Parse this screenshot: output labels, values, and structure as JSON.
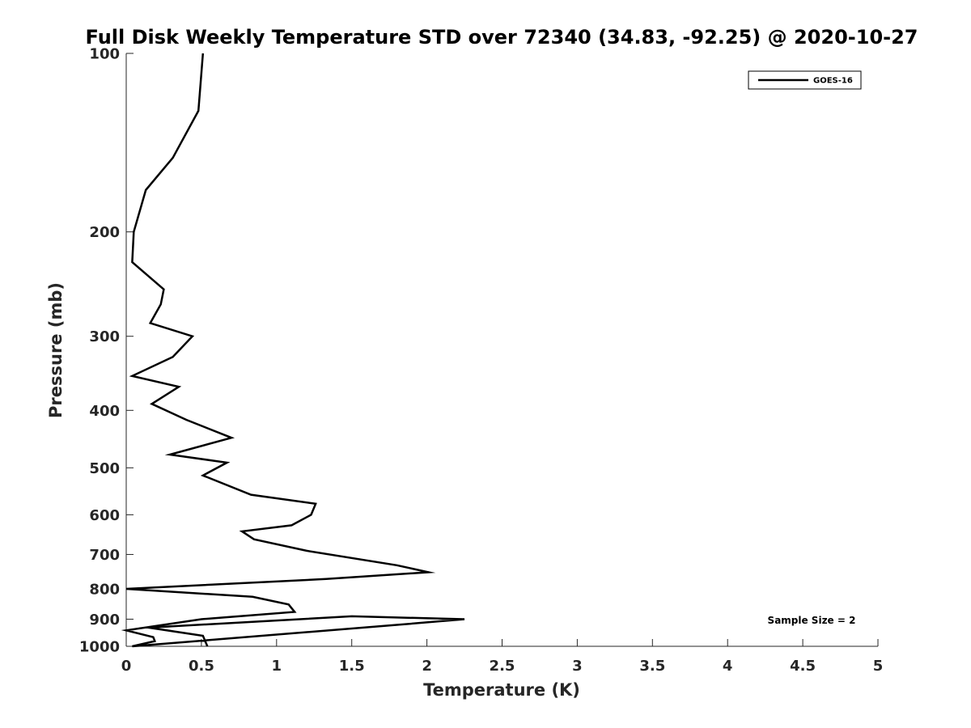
{
  "chart_data": {
    "type": "line",
    "title": "Full Disk Weekly Temperature STD over 72340 (34.83, -92.25) @ 2020-10-27",
    "xlabel": "Temperature (K)",
    "ylabel": "Pressure (mb)",
    "xlim": [
      0,
      5
    ],
    "ylim": [
      100,
      1000
    ],
    "y_scale": "log",
    "y_reversed": true,
    "x_ticks": [
      "0",
      "0.5",
      "1",
      "1.5",
      "2",
      "2.5",
      "3",
      "3.5",
      "4",
      "4.5",
      "5"
    ],
    "y_ticks": [
      "100",
      "200",
      "300",
      "400",
      "500",
      "600",
      "700",
      "800",
      "900",
      "1000"
    ],
    "grid": false,
    "legend_position": "top-right",
    "annotation": "Sample Size = 2",
    "series": [
      {
        "name": "GOES-16",
        "color": "#000000",
        "x": [
          0.51,
          0.48,
          0.31,
          0.13,
          0.05,
          0.04,
          0.25,
          0.23,
          0.16,
          0.44,
          0.31,
          0.04,
          0.35,
          0.17,
          0.4,
          0.7,
          0.29,
          0.67,
          0.51,
          0.83,
          1.26,
          1.23,
          1.1,
          0.77,
          0.85,
          1.2,
          1.8,
          2.01,
          1.33,
          0.0,
          0.84,
          1.08,
          1.12,
          0.5,
          0.0,
          0.18,
          0.19,
          0.04,
          1.8,
          2.25,
          1.5,
          0.15,
          0.51,
          0.54
        ],
        "y": [
          100,
          125,
          150,
          170,
          200,
          225,
          250,
          265,
          285,
          300,
          325,
          350,
          365,
          390,
          415,
          445,
          475,
          490,
          515,
          555,
          575,
          600,
          625,
          640,
          660,
          690,
          730,
          750,
          770,
          800,
          825,
          850,
          875,
          900,
          940,
          965,
          980,
          1000,
          920,
          900,
          890,
          930,
          960,
          1000
        ]
      }
    ]
  }
}
